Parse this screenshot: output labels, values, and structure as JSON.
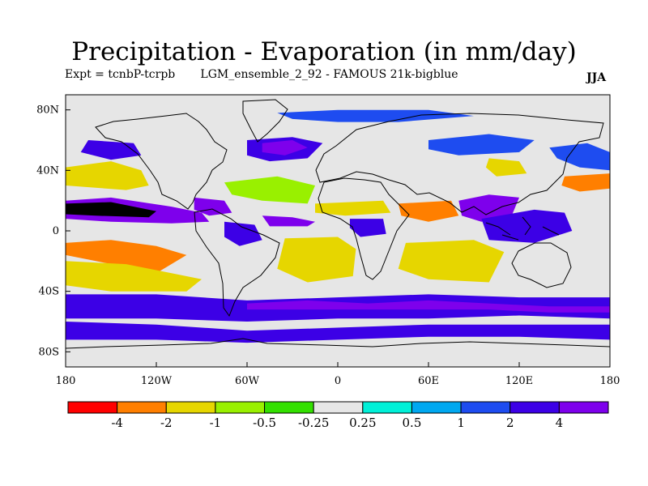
{
  "header": {
    "title": "Precipitation - Evaporation (in mm/day)",
    "experiment": "Expt = tcnbP-tcrpb",
    "run": "LGM_ensemble_2_92 - FAMOUS 21k-bigblue",
    "season": "JJA"
  },
  "map_data": {
    "projection": "cylindrical-equidistant",
    "lon_range": [
      -180,
      180
    ],
    "lat_range": [
      -90,
      90
    ],
    "lat_ticks": [
      {
        "value": 80,
        "label": "80N"
      },
      {
        "value": 40,
        "label": "40N"
      },
      {
        "value": 0,
        "label": "0"
      },
      {
        "value": -40,
        "label": "40S"
      },
      {
        "value": -80,
        "label": "80S"
      }
    ],
    "lon_ticks": [
      {
        "value": -180,
        "label": "180"
      },
      {
        "value": -120,
        "label": "120W"
      },
      {
        "value": -60,
        "label": "60W"
      },
      {
        "value": 0,
        "label": "0"
      },
      {
        "value": 60,
        "label": "60E"
      },
      {
        "value": 120,
        "label": "120E"
      },
      {
        "value": 180,
        "label": "180"
      }
    ],
    "background_class": 5,
    "regions": [
      {
        "name": "north-pacific-moist",
        "class": 9,
        "points": [
          [
            -165,
            60
          ],
          [
            -135,
            58
          ],
          [
            -130,
            50
          ],
          [
            -150,
            47
          ],
          [
            -170,
            52
          ]
        ]
      },
      {
        "name": "northwest-pacific-moist",
        "class": 8,
        "points": [
          [
            140,
            55
          ],
          [
            165,
            58
          ],
          [
            180,
            52
          ],
          [
            180,
            40
          ],
          [
            160,
            42
          ],
          [
            145,
            48
          ]
        ]
      },
      {
        "name": "north-pacific-dry",
        "class": 2,
        "points": [
          [
            -180,
            42
          ],
          [
            -150,
            46
          ],
          [
            -130,
            40
          ],
          [
            -125,
            30
          ],
          [
            -140,
            27
          ],
          [
            -180,
            30
          ]
        ]
      },
      {
        "name": "itcz-pacific",
        "class": 10,
        "points": [
          [
            -180,
            20
          ],
          [
            -150,
            22
          ],
          [
            -110,
            16
          ],
          [
            -90,
            12
          ],
          [
            -85,
            6
          ],
          [
            -110,
            5
          ],
          [
            -150,
            6
          ],
          [
            -180,
            8
          ]
        ]
      },
      {
        "name": "itcz-pacific-core",
        "class": 11,
        "points": [
          [
            -180,
            18
          ],
          [
            -150,
            19
          ],
          [
            -120,
            13
          ],
          [
            -125,
            9
          ],
          [
            -160,
            10
          ],
          [
            -180,
            11
          ]
        ]
      },
      {
        "name": "south-pacific-dry",
        "class": 1,
        "points": [
          [
            -180,
            -8
          ],
          [
            -150,
            -6
          ],
          [
            -120,
            -10
          ],
          [
            -100,
            -16
          ],
          [
            -120,
            -28
          ],
          [
            -160,
            -20
          ],
          [
            -180,
            -16
          ]
        ]
      },
      {
        "name": "south-pacific-yellow",
        "class": 2,
        "points": [
          [
            -180,
            -20
          ],
          [
            -140,
            -22
          ],
          [
            -110,
            -28
          ],
          [
            -90,
            -32
          ],
          [
            -100,
            -40
          ],
          [
            -150,
            -40
          ],
          [
            -180,
            -36
          ]
        ]
      },
      {
        "name": "southern-ocean-band",
        "class": 9,
        "points": [
          [
            -180,
            -42
          ],
          [
            -120,
            -42
          ],
          [
            -60,
            -46
          ],
          [
            0,
            -44
          ],
          [
            60,
            -42
          ],
          [
            120,
            -44
          ],
          [
            180,
            -44
          ],
          [
            180,
            -58
          ],
          [
            120,
            -56
          ],
          [
            60,
            -58
          ],
          [
            0,
            -58
          ],
          [
            -60,
            -60
          ],
          [
            -120,
            -58
          ],
          [
            -180,
            -58
          ]
        ]
      },
      {
        "name": "southern-ocean-core",
        "class": 10,
        "points": [
          [
            -60,
            -48
          ],
          [
            -20,
            -46
          ],
          [
            20,
            -48
          ],
          [
            60,
            -46
          ],
          [
            100,
            -48
          ],
          [
            140,
            -50
          ],
          [
            180,
            -50
          ],
          [
            180,
            -54
          ],
          [
            140,
            -54
          ],
          [
            100,
            -52
          ],
          [
            60,
            -52
          ],
          [
            20,
            -52
          ],
          [
            -20,
            -52
          ],
          [
            -60,
            -52
          ]
        ]
      },
      {
        "name": "antarctic-coast",
        "class": 9,
        "points": [
          [
            -180,
            -60
          ],
          [
            -120,
            -62
          ],
          [
            -60,
            -66
          ],
          [
            0,
            -64
          ],
          [
            60,
            -62
          ],
          [
            120,
            -62
          ],
          [
            180,
            -62
          ],
          [
            180,
            -72
          ],
          [
            120,
            -70
          ],
          [
            60,
            -70
          ],
          [
            0,
            -72
          ],
          [
            -60,
            -74
          ],
          [
            -120,
            -72
          ],
          [
            -180,
            -72
          ]
        ]
      },
      {
        "name": "north-atlantic-moist",
        "class": 9,
        "points": [
          [
            -60,
            60
          ],
          [
            -30,
            62
          ],
          [
            -10,
            58
          ],
          [
            -20,
            48
          ],
          [
            -45,
            46
          ],
          [
            -60,
            50
          ]
        ]
      },
      {
        "name": "north-atlantic-core",
        "class": 10,
        "points": [
          [
            -50,
            58
          ],
          [
            -30,
            60
          ],
          [
            -20,
            55
          ],
          [
            -35,
            50
          ],
          [
            -50,
            52
          ]
        ]
      },
      {
        "name": "atlantic-dry-north",
        "class": 3,
        "points": [
          [
            -75,
            32
          ],
          [
            -40,
            36
          ],
          [
            -15,
            30
          ],
          [
            -20,
            18
          ],
          [
            -50,
            20
          ],
          [
            -70,
            24
          ]
        ]
      },
      {
        "name": "atlantic-itcz",
        "class": 10,
        "points": [
          [
            -50,
            10
          ],
          [
            -30,
            9
          ],
          [
            -15,
            6
          ],
          [
            -20,
            3
          ],
          [
            -45,
            3
          ]
        ]
      },
      {
        "name": "south-atlantic-yellow",
        "class": 2,
        "points": [
          [
            -35,
            -5
          ],
          [
            0,
            -4
          ],
          [
            12,
            -12
          ],
          [
            10,
            -30
          ],
          [
            -20,
            -34
          ],
          [
            -40,
            -25
          ]
        ]
      },
      {
        "name": "indian-ocean-dry",
        "class": 2,
        "points": [
          [
            45,
            -8
          ],
          [
            90,
            -6
          ],
          [
            110,
            -14
          ],
          [
            100,
            -34
          ],
          [
            60,
            -32
          ],
          [
            40,
            -25
          ]
        ]
      },
      {
        "name": "bay-of-bengal-wet",
        "class": 10,
        "points": [
          [
            80,
            20
          ],
          [
            100,
            24
          ],
          [
            120,
            22
          ],
          [
            115,
            10
          ],
          [
            95,
            6
          ],
          [
            82,
            10
          ]
        ]
      },
      {
        "name": "maritime-continent-wet",
        "class": 9,
        "points": [
          [
            95,
            8
          ],
          [
            130,
            14
          ],
          [
            150,
            12
          ],
          [
            155,
            0
          ],
          [
            130,
            -8
          ],
          [
            100,
            -6
          ]
        ]
      },
      {
        "name": "arabian-dry",
        "class": 1,
        "points": [
          [
            40,
            18
          ],
          [
            75,
            20
          ],
          [
            80,
            10
          ],
          [
            60,
            6
          ],
          [
            42,
            10
          ]
        ]
      },
      {
        "name": "sahel-dry",
        "class": 2,
        "points": [
          [
            -15,
            18
          ],
          [
            30,
            20
          ],
          [
            35,
            12
          ],
          [
            5,
            10
          ],
          [
            -15,
            12
          ]
        ]
      },
      {
        "name": "central-africa-wet",
        "class": 9,
        "points": [
          [
            8,
            8
          ],
          [
            30,
            8
          ],
          [
            32,
            -2
          ],
          [
            15,
            -4
          ],
          [
            8,
            2
          ]
        ]
      },
      {
        "name": "amazon-wet",
        "class": 9,
        "points": [
          [
            -75,
            6
          ],
          [
            -55,
            4
          ],
          [
            -50,
            -6
          ],
          [
            -65,
            -10
          ],
          [
            -75,
            -4
          ]
        ]
      },
      {
        "name": "siberia-moist",
        "class": 8,
        "points": [
          [
            60,
            60
          ],
          [
            100,
            64
          ],
          [
            130,
            60
          ],
          [
            120,
            52
          ],
          [
            80,
            50
          ],
          [
            60,
            54
          ]
        ]
      },
      {
        "name": "east-asia-dry",
        "class": 2,
        "points": [
          [
            100,
            48
          ],
          [
            120,
            46
          ],
          [
            125,
            38
          ],
          [
            105,
            36
          ],
          [
            98,
            42
          ]
        ]
      },
      {
        "name": "west-pacific-dry",
        "class": 1,
        "points": [
          [
            150,
            36
          ],
          [
            180,
            38
          ],
          [
            180,
            28
          ],
          [
            160,
            26
          ],
          [
            148,
            30
          ]
        ]
      },
      {
        "name": "caribbean-wet",
        "class": 10,
        "points": [
          [
            -95,
            22
          ],
          [
            -75,
            20
          ],
          [
            -70,
            12
          ],
          [
            -85,
            10
          ],
          [
            -95,
            14
          ]
        ]
      },
      {
        "name": "arctic-moist",
        "class": 8,
        "points": [
          [
            -40,
            78
          ],
          [
            0,
            80
          ],
          [
            60,
            80
          ],
          [
            90,
            76
          ],
          [
            40,
            72
          ],
          [
            0,
            72
          ],
          [
            -30,
            74
          ]
        ]
      }
    ]
  },
  "colorbar": {
    "colors": [
      "#ff0000",
      "#ff7f00",
      "#e6d600",
      "#99f000",
      "#33e000",
      "#e6e6e6",
      "#00f0d8",
      "#00a8f0",
      "#1e4cf0",
      "#3c00e6",
      "#7e00ec"
    ],
    "labels": [
      "-4",
      "-2",
      "-1",
      "-0.5",
      "-0.25",
      "0.25",
      "0.5",
      "1",
      "2",
      "4"
    ]
  }
}
